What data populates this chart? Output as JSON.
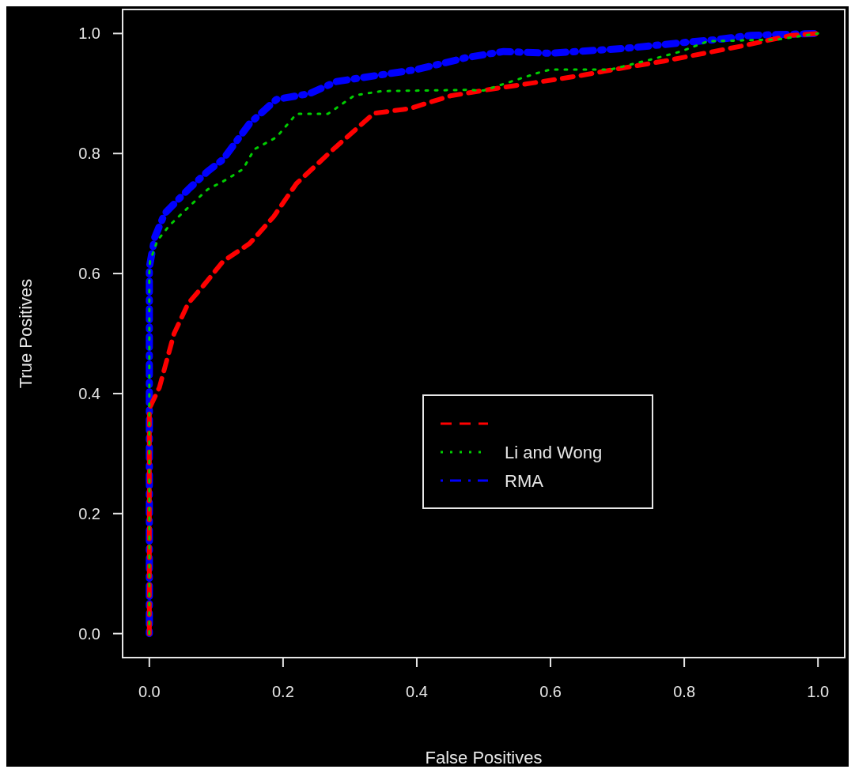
{
  "chart_data": {
    "type": "line",
    "xlabel": "False Positives",
    "ylabel": "True Positives",
    "xlim": [
      -0.04,
      1.04
    ],
    "ylim": [
      -0.04,
      1.04
    ],
    "xticks": [
      {
        "value": 0,
        "label": "0.0"
      },
      {
        "value": 0.2,
        "label": "0.2"
      },
      {
        "value": 0.4,
        "label": "0.4"
      },
      {
        "value": 0.6,
        "label": "0.6"
      },
      {
        "value": 0.8,
        "label": "0.8"
      },
      {
        "value": 1,
        "label": "1.0"
      }
    ],
    "yticks": [
      {
        "value": 0,
        "label": "0.0"
      },
      {
        "value": 0.2,
        "label": "0.2"
      },
      {
        "value": 0.4,
        "label": "0.4"
      },
      {
        "value": 0.6,
        "label": "0.6"
      },
      {
        "value": 0.8,
        "label": "0.8"
      },
      {
        "value": 1,
        "label": "1.0"
      }
    ],
    "grid": false,
    "legend": "bottom",
    "marker": "none",
    "series": [
      {
        "color": "#ff0000",
        "line_style": "dashed",
        "x": [
          0,
          0,
          0.015,
          0.037,
          0.058,
          0.081,
          0.11,
          0.15,
          0.186,
          0.22,
          0.278,
          0.336,
          0.39,
          0.45,
          0.51,
          0.57,
          0.64,
          0.7,
          0.77,
          0.83,
          0.89,
          0.96,
          1
        ],
        "values": [
          0,
          0.375,
          0.41,
          0.5,
          0.55,
          0.58,
          0.62,
          0.65,
          0.695,
          0.75,
          0.81,
          0.867,
          0.875,
          0.896,
          0.907,
          0.917,
          0.929,
          0.941,
          0.954,
          0.967,
          0.98,
          0.997,
          1
        ]
      },
      {
        "name": "Li and Wong",
        "color": "#00cd00",
        "line_style": "dotted",
        "x": [
          0,
          0,
          0.001,
          0.012,
          0.03,
          0.058,
          0.087,
          0.116,
          0.14,
          0.157,
          0.19,
          0.22,
          0.267,
          0.307,
          0.348,
          0.475,
          0.5,
          0.58,
          0.6,
          0.69,
          0.755,
          0.795,
          0.835,
          0.94,
          1
        ],
        "values": [
          0,
          0.6,
          0.62,
          0.655,
          0.68,
          0.71,
          0.74,
          0.757,
          0.774,
          0.807,
          0.827,
          0.866,
          0.866,
          0.897,
          0.904,
          0.906,
          0.905,
          0.934,
          0.94,
          0.94,
          0.958,
          0.97,
          0.987,
          0.99,
          1
        ]
      },
      {
        "name": "RMA",
        "color": "#0000ff",
        "line_style": "dashdot",
        "x": [
          0,
          0,
          0.008,
          0.023,
          0.058,
          0.087,
          0.11,
          0.15,
          0.19,
          0.24,
          0.28,
          0.34,
          0.4,
          0.475,
          0.53,
          0.6,
          0.64,
          0.71,
          0.8,
          0.85,
          0.9,
          1
        ],
        "values": [
          0,
          0.61,
          0.66,
          0.7,
          0.74,
          0.77,
          0.79,
          0.85,
          0.89,
          0.9,
          0.92,
          0.93,
          0.94,
          0.96,
          0.97,
          0.967,
          0.97,
          0.975,
          0.985,
          0.99,
          0.997,
          1
        ]
      }
    ]
  }
}
